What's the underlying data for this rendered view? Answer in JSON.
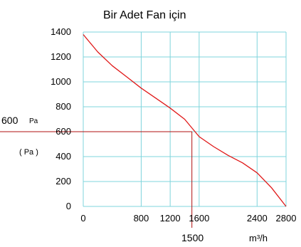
{
  "chart_data": {
    "type": "line",
    "title": "Bir Adet Fan için",
    "xlabel": "m³/h",
    "ylabel": "( Pa )",
    "xlim": [
      0,
      2800
    ],
    "ylim": [
      0,
      1400
    ],
    "x_ticks": [
      0,
      800,
      1200,
      1600,
      2400,
      2800
    ],
    "y_ticks": [
      0,
      200,
      400,
      600,
      800,
      1000,
      1200,
      1400
    ],
    "grid": true,
    "colors": {
      "grid": "#7fd4dc",
      "curve": "#e01818",
      "marker": "#b01010"
    },
    "series": [
      {
        "points": [
          [
            0,
            1380
          ],
          [
            200,
            1240
          ],
          [
            400,
            1130
          ],
          [
            600,
            1040
          ],
          [
            800,
            950
          ],
          [
            1000,
            870
          ],
          [
            1200,
            790
          ],
          [
            1400,
            700
          ],
          [
            1600,
            560
          ],
          [
            1800,
            480
          ],
          [
            2000,
            410
          ],
          [
            2200,
            350
          ],
          [
            2400,
            270
          ],
          [
            2600,
            150
          ],
          [
            2800,
            0
          ]
        ]
      }
    ],
    "annotations": {
      "point": {
        "x": 1500,
        "y": 600
      },
      "x_label": "1500",
      "y_label": "600",
      "y_unit": "Pa"
    }
  }
}
